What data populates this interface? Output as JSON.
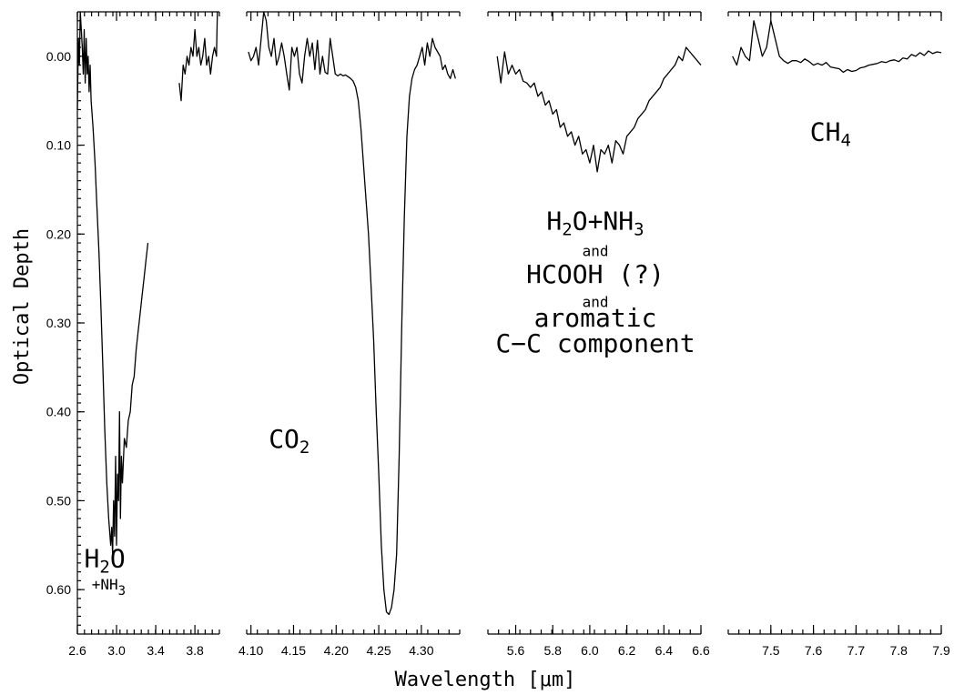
{
  "chart_data": {
    "type": "line",
    "ylabel": "Optical Depth",
    "xlabel": "Wavelength [μm]",
    "ylim": [
      -0.05,
      0.65
    ],
    "y_inverted": true,
    "y_ticks": [
      0.0,
      0.1,
      0.2,
      0.3,
      0.4,
      0.5,
      0.6
    ],
    "y_tick_labels": [
      "0.00",
      "0.10",
      "0.20",
      "0.30",
      "0.40",
      "0.50",
      "0.60"
    ],
    "panels": [
      {
        "xlim": [
          2.6,
          4.05
        ],
        "x_ticks": [
          2.6,
          3.0,
          3.4,
          3.8
        ],
        "x_tick_labels": [
          "2.6",
          "3.0",
          "3.4",
          "3.8"
        ],
        "annotations": [
          {
            "text": "H",
            "sub": "2",
            "after": "O",
            "x": 2.88,
            "y": 0.575,
            "size": "large"
          },
          {
            "text": "+NH",
            "sub": "3",
            "after": "",
            "x": 2.92,
            "y": 0.6,
            "size": "small"
          }
        ],
        "series": [
          {
            "x": [
              2.6,
              2.61,
              2.62,
              2.63,
              2.64,
              2.65,
              2.66,
              2.67,
              2.68,
              2.69,
              2.7,
              2.71,
              2.72,
              2.73,
              2.74,
              2.76,
              2.78,
              2.8,
              2.82,
              2.84,
              2.86,
              2.88,
              2.9,
              2.92,
              2.94,
              2.95,
              2.96,
              2.97,
              2.98,
              2.99,
              3.0,
              3.01,
              3.02,
              3.03,
              3.04,
              3.05,
              3.06,
              3.08,
              3.1,
              3.12,
              3.14,
              3.16,
              3.18,
              3.2,
              3.22,
              3.24,
              3.26,
              3.28,
              3.3,
              3.32
            ],
            "values": [
              0.06,
              -0.02,
              0.01,
              -0.05,
              -0.03,
              -0.01,
              0.02,
              -0.03,
              0.03,
              -0.02,
              0.02,
              0.0,
              0.04,
              0.01,
              0.05,
              0.08,
              0.12,
              0.17,
              0.22,
              0.28,
              0.35,
              0.42,
              0.48,
              0.52,
              0.55,
              0.53,
              0.56,
              0.5,
              0.54,
              0.45,
              0.55,
              0.47,
              0.5,
              0.4,
              0.52,
              0.45,
              0.48,
              0.43,
              0.44,
              0.41,
              0.4,
              0.37,
              0.36,
              0.33,
              0.31,
              0.29,
              0.27,
              0.25,
              0.23,
              0.21
            ]
          },
          {
            "x": [
              3.64,
              3.66,
              3.68,
              3.7,
              3.72,
              3.74,
              3.76,
              3.78,
              3.8,
              3.82,
              3.84,
              3.86,
              3.88,
              3.9,
              3.92,
              3.94,
              3.96,
              3.98,
              4.0,
              4.02,
              4.03
            ],
            "values": [
              0.03,
              0.05,
              0.01,
              0.02,
              0.0,
              0.01,
              -0.01,
              0.0,
              -0.03,
              0.0,
              -0.01,
              0.01,
              0.0,
              -0.02,
              0.01,
              0.0,
              0.02,
              0.0,
              -0.01,
              0.0,
              -0.05
            ]
          }
        ]
      },
      {
        "xlim": [
          4.095,
          4.345
        ],
        "x_ticks": [
          4.1,
          4.15,
          4.2,
          4.25,
          4.3
        ],
        "x_tick_labels": [
          "4.10",
          "4.15",
          "4.20",
          "4.25",
          "4.30"
        ],
        "annotations": [
          {
            "text": "CO",
            "sub": "2",
            "after": "",
            "x": 4.145,
            "y": 0.44,
            "size": "large"
          }
        ],
        "series": [
          {
            "x": [
              4.097,
              4.1,
              4.103,
              4.106,
              4.109,
              4.112,
              4.115,
              4.118,
              4.121,
              4.124,
              4.127,
              4.13,
              4.133,
              4.136,
              4.139,
              4.142,
              4.145,
              4.148,
              4.151,
              4.154,
              4.157,
              4.16,
              4.163,
              4.166,
              4.169,
              4.172,
              4.175,
              4.178,
              4.181,
              4.184,
              4.187,
              4.19,
              4.193,
              4.196,
              4.199,
              4.202,
              4.205,
              4.208,
              4.211,
              4.214,
              4.217,
              4.22,
              4.223,
              4.226,
              4.229,
              4.232,
              4.235,
              4.238,
              4.241,
              4.244,
              4.247,
              4.25,
              4.253,
              4.256,
              4.259,
              4.262,
              4.265,
              4.268,
              4.271,
              4.274,
              4.277,
              4.28,
              4.283,
              4.286,
              4.289,
              4.292,
              4.295,
              4.298,
              4.301,
              4.304,
              4.307,
              4.31,
              4.313,
              4.316,
              4.319,
              4.322,
              4.325,
              4.328,
              4.331,
              4.334,
              4.337,
              4.34
            ],
            "values": [
              -0.005,
              0.005,
              0.0,
              -0.01,
              0.01,
              -0.02,
              -0.05,
              -0.04,
              -0.01,
              0.0,
              -0.02,
              0.01,
              0.0,
              -0.015,
              0.0,
              0.02,
              0.038,
              -0.01,
              0.0,
              -0.01,
              0.02,
              0.03,
              0.0,
              -0.02,
              0.0,
              -0.015,
              0.015,
              -0.018,
              0.02,
              0.0,
              0.018,
              0.02,
              -0.02,
              0.0,
              0.02,
              0.022,
              0.02,
              0.022,
              0.021,
              0.023,
              0.025,
              0.028,
              0.035,
              0.05,
              0.08,
              0.12,
              0.16,
              0.2,
              0.26,
              0.32,
              0.4,
              0.47,
              0.55,
              0.6,
              0.625,
              0.628,
              0.62,
              0.6,
              0.56,
              0.45,
              0.3,
              0.18,
              0.09,
              0.045,
              0.025,
              0.015,
              0.01,
              0.0,
              -0.01,
              0.01,
              -0.015,
              0.0,
              -0.02,
              -0.01,
              -0.005,
              0.0,
              0.015,
              0.01,
              0.02,
              0.025,
              0.015,
              0.025
            ]
          }
        ]
      },
      {
        "xlim": [
          5.45,
          6.6
        ],
        "x_ticks": [
          5.6,
          5.8,
          6.0,
          6.2,
          6.4,
          6.6
        ],
        "x_tick_labels": [
          "5.6",
          "5.8",
          "6.0",
          "6.2",
          "6.4",
          "6.6"
        ],
        "annotations": [
          {
            "text": "H",
            "sub": "2",
            "after": "O+NH",
            "sub2": "3",
            "x": 6.03,
            "y": 0.195,
            "size": "large"
          },
          {
            "text": "and",
            "x": 6.03,
            "y": 0.225,
            "size": "small"
          },
          {
            "text": "HCOOH (?)",
            "x": 6.03,
            "y": 0.255,
            "size": "large"
          },
          {
            "text": "and",
            "x": 6.03,
            "y": 0.282,
            "size": "small"
          },
          {
            "text": "aromatic",
            "x": 6.03,
            "y": 0.304,
            "size": "large"
          },
          {
            "text": "C−C component",
            "x": 6.03,
            "y": 0.333,
            "size": "large"
          }
        ],
        "series": [
          {
            "x": [
              5.5,
              5.52,
              5.54,
              5.56,
              5.58,
              5.6,
              5.62,
              5.64,
              5.66,
              5.68,
              5.7,
              5.72,
              5.74,
              5.76,
              5.78,
              5.8,
              5.82,
              5.84,
              5.86,
              5.88,
              5.9,
              5.92,
              5.94,
              5.96,
              5.98,
              6.0,
              6.02,
              6.04,
              6.06,
              6.08,
              6.1,
              6.12,
              6.14,
              6.16,
              6.18,
              6.2,
              6.22,
              6.24,
              6.26,
              6.28,
              6.3,
              6.32,
              6.34,
              6.36,
              6.38,
              6.4,
              6.42,
              6.44,
              6.46,
              6.48,
              6.5,
              6.52,
              6.54,
              6.56,
              6.58,
              6.6
            ],
            "values": [
              0.0,
              0.03,
              -0.005,
              0.02,
              0.01,
              0.02,
              0.015,
              0.028,
              0.03,
              0.035,
              0.03,
              0.045,
              0.04,
              0.055,
              0.05,
              0.065,
              0.06,
              0.08,
              0.075,
              0.09,
              0.085,
              0.1,
              0.09,
              0.11,
              0.105,
              0.12,
              0.1,
              0.13,
              0.105,
              0.11,
              0.1,
              0.12,
              0.095,
              0.1,
              0.11,
              0.09,
              0.085,
              0.08,
              0.07,
              0.065,
              0.06,
              0.05,
              0.045,
              0.04,
              0.035,
              0.025,
              0.02,
              0.015,
              0.01,
              0.0,
              0.005,
              -0.01,
              -0.005,
              0.0,
              0.005,
              0.01
            ]
          }
        ]
      },
      {
        "xlim": [
          7.4,
          7.9
        ],
        "x_ticks": [
          7.5,
          7.6,
          7.7,
          7.8,
          7.9
        ],
        "x_tick_labels": [
          "7.5",
          "7.6",
          "7.7",
          "7.8",
          "7.9"
        ],
        "annotations": [
          {
            "text": "CH",
            "sub": "4",
            "after": "",
            "x": 7.64,
            "y": 0.095,
            "size": "large"
          }
        ],
        "series": [
          {
            "x": [
              7.41,
              7.42,
              7.43,
              7.44,
              7.45,
              7.46,
              7.47,
              7.48,
              7.49,
              7.5,
              7.51,
              7.52,
              7.53,
              7.54,
              7.55,
              7.56,
              7.57,
              7.58,
              7.59,
              7.6,
              7.61,
              7.62,
              7.63,
              7.64,
              7.65,
              7.66,
              7.67,
              7.68,
              7.69,
              7.7,
              7.71,
              7.72,
              7.73,
              7.74,
              7.75,
              7.76,
              7.77,
              7.78,
              7.79,
              7.8,
              7.81,
              7.82,
              7.83,
              7.84,
              7.85,
              7.86,
              7.87,
              7.88,
              7.89,
              7.9
            ],
            "values": [
              0.0,
              0.01,
              -0.01,
              0.0,
              0.005,
              -0.04,
              -0.02,
              0.0,
              -0.01,
              -0.04,
              -0.02,
              0.0,
              0.005,
              0.008,
              0.005,
              0.005,
              0.007,
              0.003,
              0.006,
              0.01,
              0.008,
              0.01,
              0.007,
              0.012,
              0.013,
              0.014,
              0.018,
              0.015,
              0.017,
              0.016,
              0.013,
              0.012,
              0.01,
              0.009,
              0.008,
              0.006,
              0.007,
              0.005,
              0.004,
              0.006,
              0.002,
              0.003,
              -0.002,
              0.0,
              -0.004,
              -0.001,
              -0.006,
              -0.003,
              -0.005,
              -0.004
            ]
          }
        ]
      }
    ]
  }
}
